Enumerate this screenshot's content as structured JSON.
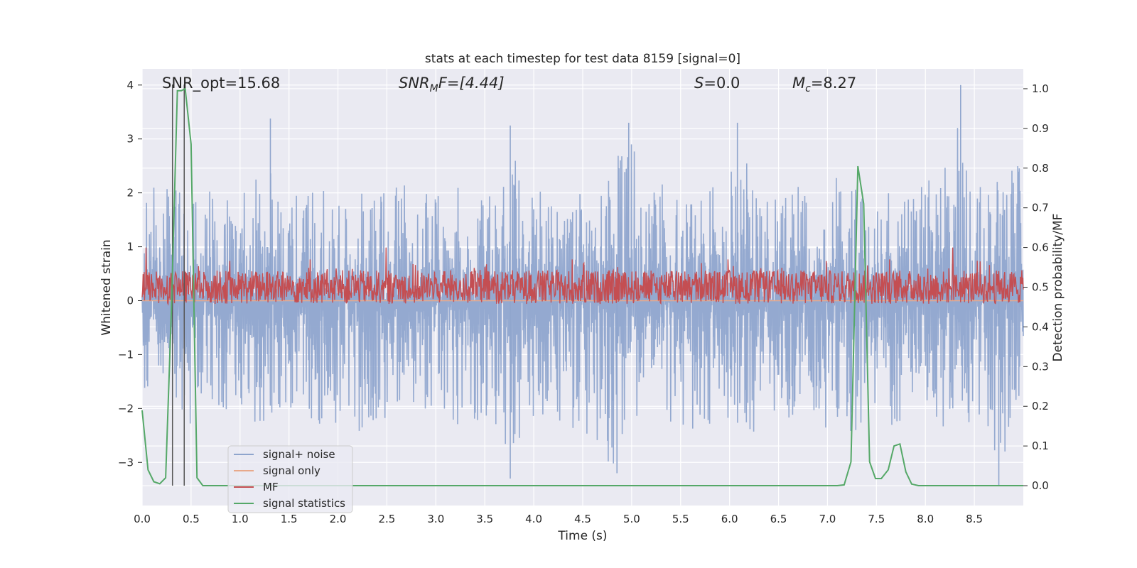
{
  "chart_data": {
    "type": "line",
    "title": "stats at each timestep for test data 8159 [signal=0]",
    "xlabel": "Time (s)",
    "ylabel": "Whitened strain",
    "y2label": "Detection probability/MF",
    "xlim": [
      0.0,
      9.0
    ],
    "ylim": [
      -3.8,
      4.3
    ],
    "y2lim": [
      -0.05,
      1.05
    ],
    "xticks": [
      "0.0",
      "0.5",
      "1.0",
      "1.5",
      "2.0",
      "2.5",
      "3.0",
      "3.5",
      "4.0",
      "4.5",
      "5.0",
      "5.5",
      "6.0",
      "6.5",
      "7.0",
      "7.5",
      "8.0",
      "8.5"
    ],
    "yticks": [
      "4",
      "3",
      "2",
      "1",
      "0",
      "−1",
      "−2",
      "−3"
    ],
    "y2ticks": [
      "1.0",
      "0.9",
      "0.8",
      "0.7",
      "0.6",
      "0.5",
      "0.4",
      "0.3",
      "0.2",
      "0.1",
      "0.0"
    ],
    "grid": true,
    "legend_position": "lower-left",
    "annotations": {
      "snr_opt": "SNR_opt=15.68",
      "snr_mf_base": "SNR",
      "snr_mf_sub": "M",
      "snr_mf_rest": "F=[4.44]",
      "s_sym": "S",
      "s_rest": "=0.0",
      "mc_base": "M",
      "mc_sub": "c",
      "mc_rest": "=8.27"
    },
    "vertical_lines_x": [
      0.31,
      0.43
    ],
    "series": [
      {
        "name": "signal+ noise",
        "color": "#8fa5cd",
        "axis": "left",
        "description": "dense noise, roughly uniform envelope",
        "envelope_upper": [
          [
            0.0,
            1.9
          ],
          [
            0.1,
            2.4
          ],
          [
            0.2,
            2.2
          ],
          [
            0.3,
            2.3
          ],
          [
            0.45,
            2.1
          ],
          [
            0.6,
            1.9
          ],
          [
            0.8,
            2.2
          ],
          [
            0.95,
            1.8
          ],
          [
            1.1,
            2.2
          ],
          [
            1.31,
            3.38
          ],
          [
            1.4,
            2.0
          ],
          [
            1.6,
            2.0
          ],
          [
            1.8,
            2.1
          ],
          [
            2.0,
            2.0
          ],
          [
            2.2,
            2.1
          ],
          [
            2.4,
            1.9
          ],
          [
            2.6,
            2.3
          ],
          [
            2.8,
            2.1
          ],
          [
            3.0,
            2.0
          ],
          [
            3.2,
            2.2
          ],
          [
            3.4,
            2.0
          ],
          [
            3.6,
            2.2
          ],
          [
            3.76,
            3.25
          ],
          [
            3.9,
            2.0
          ],
          [
            4.1,
            2.3
          ],
          [
            4.3,
            2.0
          ],
          [
            4.5,
            2.0
          ],
          [
            4.7,
            2.1
          ],
          [
            4.97,
            3.3
          ],
          [
            5.1,
            2.1
          ],
          [
            5.3,
            2.2
          ],
          [
            5.6,
            2.0
          ],
          [
            5.8,
            2.2
          ],
          [
            6.0,
            2.6
          ],
          [
            6.08,
            3.3
          ],
          [
            6.3,
            2.0
          ],
          [
            6.5,
            2.2
          ],
          [
            6.7,
            2.2
          ],
          [
            6.9,
            2.6
          ],
          [
            7.1,
            2.3
          ],
          [
            7.3,
            2.1
          ],
          [
            7.5,
            2.3
          ],
          [
            7.7,
            2.0
          ],
          [
            7.9,
            2.1
          ],
          [
            8.1,
            2.3
          ],
          [
            8.36,
            4.0
          ],
          [
            8.5,
            2.2
          ],
          [
            8.7,
            2.4
          ],
          [
            8.9,
            2.5
          ]
        ],
        "envelope_lower": [
          [
            0.0,
            -2.0
          ],
          [
            0.1,
            -1.6
          ],
          [
            0.3,
            -1.6
          ],
          [
            0.45,
            -2.6
          ],
          [
            0.6,
            -1.8
          ],
          [
            0.8,
            -2.0
          ],
          [
            1.0,
            -2.2
          ],
          [
            1.2,
            -2.3
          ],
          [
            1.4,
            -2.1
          ],
          [
            1.6,
            -2.0
          ],
          [
            1.8,
            -2.4
          ],
          [
            2.0,
            -2.3
          ],
          [
            2.2,
            -2.8
          ],
          [
            2.4,
            -2.4
          ],
          [
            2.6,
            -2.1
          ],
          [
            2.8,
            -2.0
          ],
          [
            3.0,
            -2.2
          ],
          [
            3.2,
            -2.3
          ],
          [
            3.4,
            -2.4
          ],
          [
            3.6,
            -2.5
          ],
          [
            3.76,
            -3.3
          ],
          [
            3.9,
            -2.2
          ],
          [
            4.1,
            -2.3
          ],
          [
            4.3,
            -2.4
          ],
          [
            4.5,
            -2.7
          ],
          [
            4.7,
            -2.9
          ],
          [
            4.85,
            -3.2
          ],
          [
            5.0,
            -2.4
          ],
          [
            5.2,
            -2.2
          ],
          [
            5.4,
            -2.3
          ],
          [
            5.6,
            -2.4
          ],
          [
            5.8,
            -2.3
          ],
          [
            6.0,
            -2.2
          ],
          [
            6.25,
            -2.5
          ],
          [
            6.4,
            -2.2
          ],
          [
            6.6,
            -2.3
          ],
          [
            6.8,
            -2.2
          ],
          [
            7.0,
            -2.4
          ],
          [
            7.2,
            -2.4
          ],
          [
            7.4,
            -2.5
          ],
          [
            7.6,
            -2.4
          ],
          [
            7.8,
            -2.2
          ],
          [
            8.0,
            -2.2
          ],
          [
            8.2,
            -2.4
          ],
          [
            8.4,
            -2.3
          ],
          [
            8.6,
            -2.2
          ],
          [
            8.75,
            -3.42
          ],
          [
            8.9,
            -2.0
          ]
        ]
      },
      {
        "name": "signal only",
        "color": "#e8a98b",
        "axis": "left",
        "values_constant": 0.0
      },
      {
        "name": "MF",
        "color": "#c44e52",
        "axis": "right",
        "baseline": 0.5,
        "typical_range": [
          0.45,
          0.56
        ],
        "peaks": [
          [
            0.04,
            0.6
          ],
          [
            2.49,
            0.6
          ],
          [
            8.28,
            0.6
          ]
        ]
      },
      {
        "name": "signal statistics",
        "color": "#55a868",
        "axis": "right",
        "x": [
          0.0,
          0.06,
          0.12,
          0.18,
          0.24,
          0.3,
          0.36,
          0.4,
          0.44,
          0.5,
          0.56,
          0.62,
          0.7,
          1.0,
          2.0,
          3.0,
          4.0,
          5.0,
          6.0,
          7.0,
          7.1,
          7.17,
          7.24,
          7.31,
          7.37,
          7.43,
          7.49,
          7.55,
          7.62,
          7.68,
          7.74,
          7.8,
          7.86,
          7.93,
          8.0,
          8.5,
          9.0
        ],
        "y": [
          0.19,
          0.04,
          0.01,
          0.005,
          0.02,
          0.45,
          0.995,
          0.995,
          1.0,
          0.86,
          0.02,
          0.0,
          0.0,
          0.0,
          0.0,
          0.0,
          0.0,
          0.0,
          0.0,
          0.0,
          0.0,
          0.002,
          0.06,
          0.805,
          0.71,
          0.06,
          0.018,
          0.018,
          0.04,
          0.1,
          0.105,
          0.035,
          0.004,
          0.0,
          0.0,
          0.0,
          0.0
        ]
      }
    ]
  }
}
